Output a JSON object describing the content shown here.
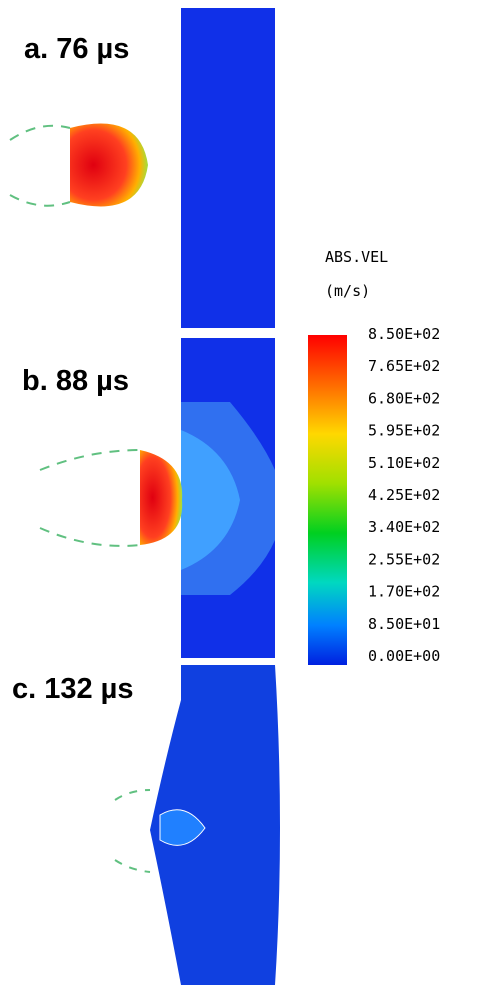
{
  "panels": [
    {
      "label": "a. 76 µs"
    },
    {
      "label": "b. 88 µs"
    },
    {
      "label": "c. 132 µs"
    }
  ],
  "legend": {
    "title": "ABS.VEL",
    "unit": "(m/s)",
    "ticks": [
      "8.50E+02",
      "7.65E+02",
      "6.80E+02",
      "5.95E+02",
      "5.10E+02",
      "4.25E+02",
      "3.40E+02",
      "2.55E+02",
      "1.70E+02",
      "8.50E+01",
      "0.00E+00"
    ]
  }
}
